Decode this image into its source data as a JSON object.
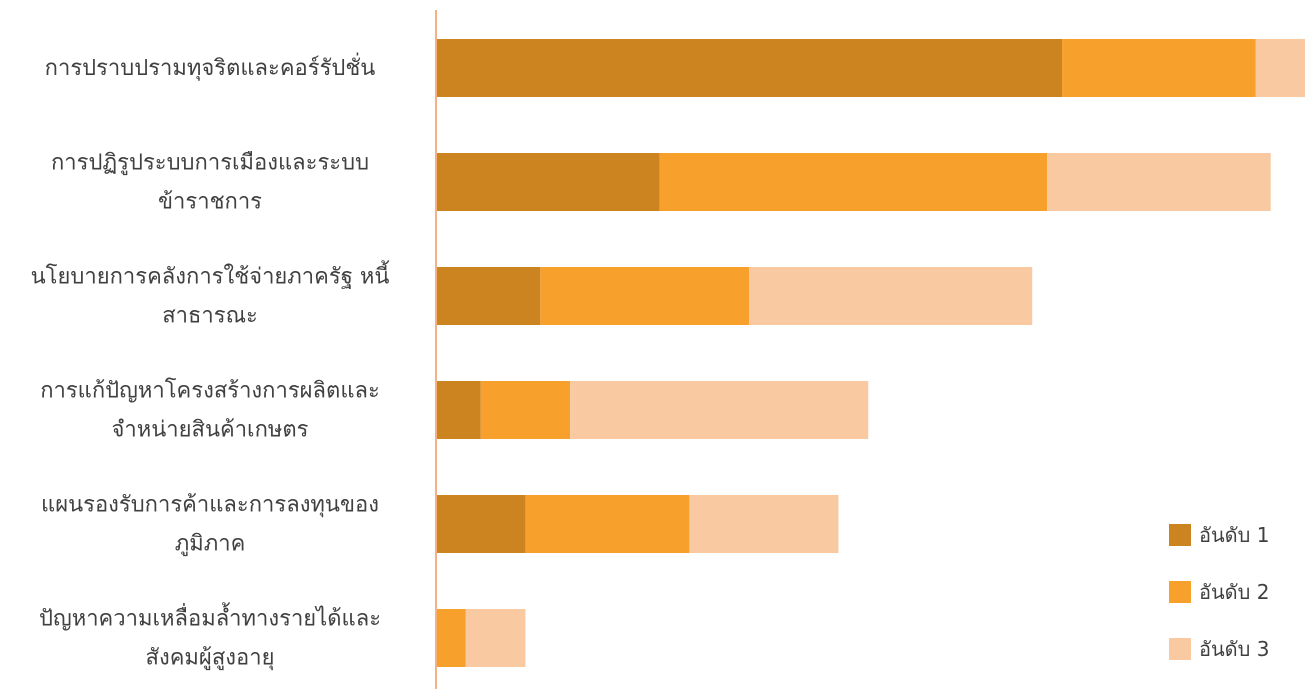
{
  "chart_data": {
    "type": "bar",
    "orientation": "horizontal",
    "stacked": true,
    "categories": [
      [
        "การปราบปรามทุจริตและคอร์รัปชั่น"
      ],
      [
        "การปฏิรูประบบการเมืองและระบบ",
        "ข้าราชการ"
      ],
      [
        "นโยบายการคลังการใช้จ่ายภาครัฐ หนี้",
        "สาธารณะ"
      ],
      [
        "การแก้ปัญหาโครงสร้างการผลิตและ",
        "จำหน่ายสินค้าเกษตร"
      ],
      [
        "แผนรองรับการค้าและการลงทุนของ",
        "ภูมิภาค"
      ],
      [
        "ปัญหาความเหลื่อมล้ำทางรายได้และ",
        "สังคมผู้สูงอายุ"
      ]
    ],
    "series": [
      {
        "name": "อันดับ 1",
        "color": "#CC8420",
        "values": [
          42,
          15,
          7,
          3,
          6,
          0
        ]
      },
      {
        "name": "อันดับ 2",
        "color": "#F7A12C",
        "values": [
          13,
          26,
          14,
          6,
          11,
          2
        ]
      },
      {
        "name": "อันดับ 3",
        "color": "#F9C9A2",
        "values": [
          3.3,
          15,
          19,
          20,
          10,
          4
        ]
      }
    ],
    "xlim": [
      0,
      58.3
    ],
    "grid": false,
    "legend_position": "bottom-right",
    "axis_color": "#F4B183"
  }
}
